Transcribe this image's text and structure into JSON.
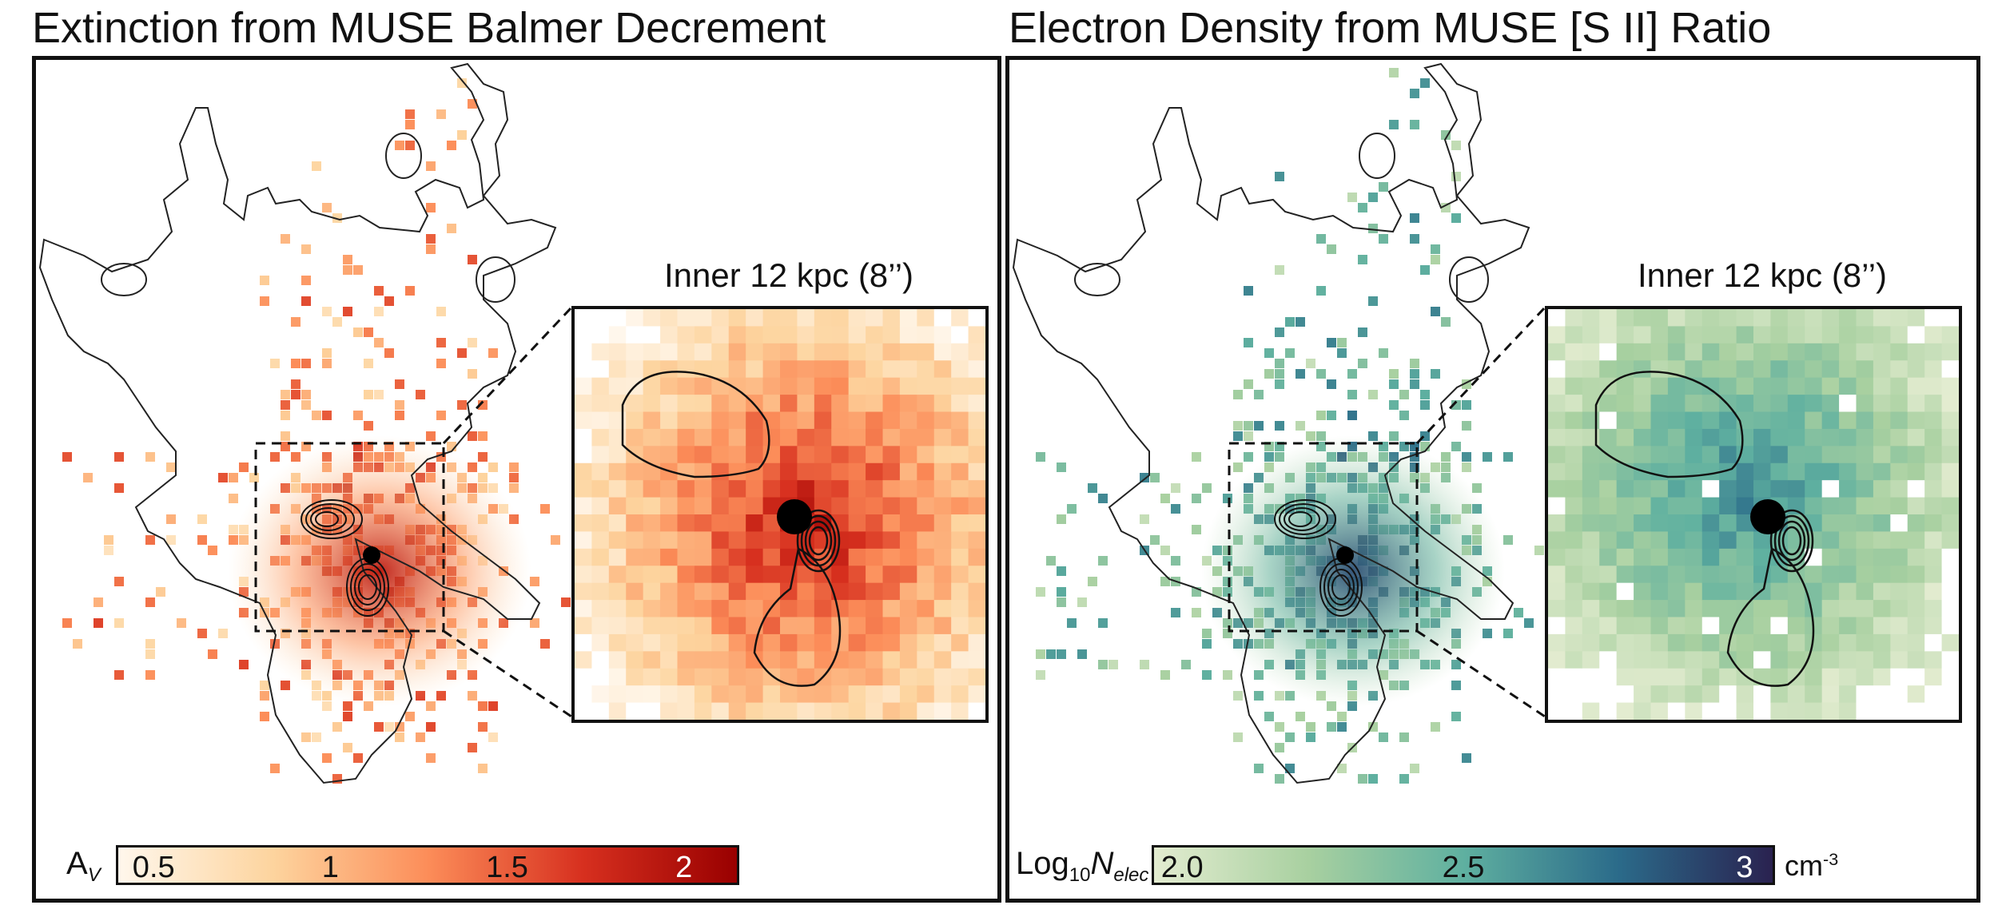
{
  "left_panel": {
    "title": "Extinction from MUSE Balmer Decrement",
    "inset_title": "Inner 12 kpc (8’’)",
    "colorbar": {
      "label_main": "A",
      "label_sub": "V",
      "ticks": [
        "0.5",
        "1",
        "1.5",
        "2"
      ],
      "tick_values": [
        0.5,
        1,
        1.5,
        2
      ],
      "range": [
        0.4,
        2.15
      ],
      "colormap": [
        "#fff7ec",
        "#fdd49e",
        "#fc8d59",
        "#d7301f",
        "#990000"
      ]
    }
  },
  "right_panel": {
    "title": "Electron Density from MUSE [S II] Ratio",
    "inset_title": "Inner 12 kpc (8’’)",
    "colorbar": {
      "label_main": "Log",
      "label_sub": "10",
      "label_var": "N",
      "label_var_sub": "elec",
      "ticks": [
        "2.0",
        "2.5",
        "3"
      ],
      "tick_values": [
        2.0,
        2.5,
        3.0
      ],
      "range": [
        1.95,
        3.05
      ],
      "unit": "cm",
      "unit_sup": "-3",
      "colormap": [
        "#e3ecd0",
        "#a8d0a0",
        "#5fb0a0",
        "#2b6b8a",
        "#2a2250"
      ]
    }
  }
}
